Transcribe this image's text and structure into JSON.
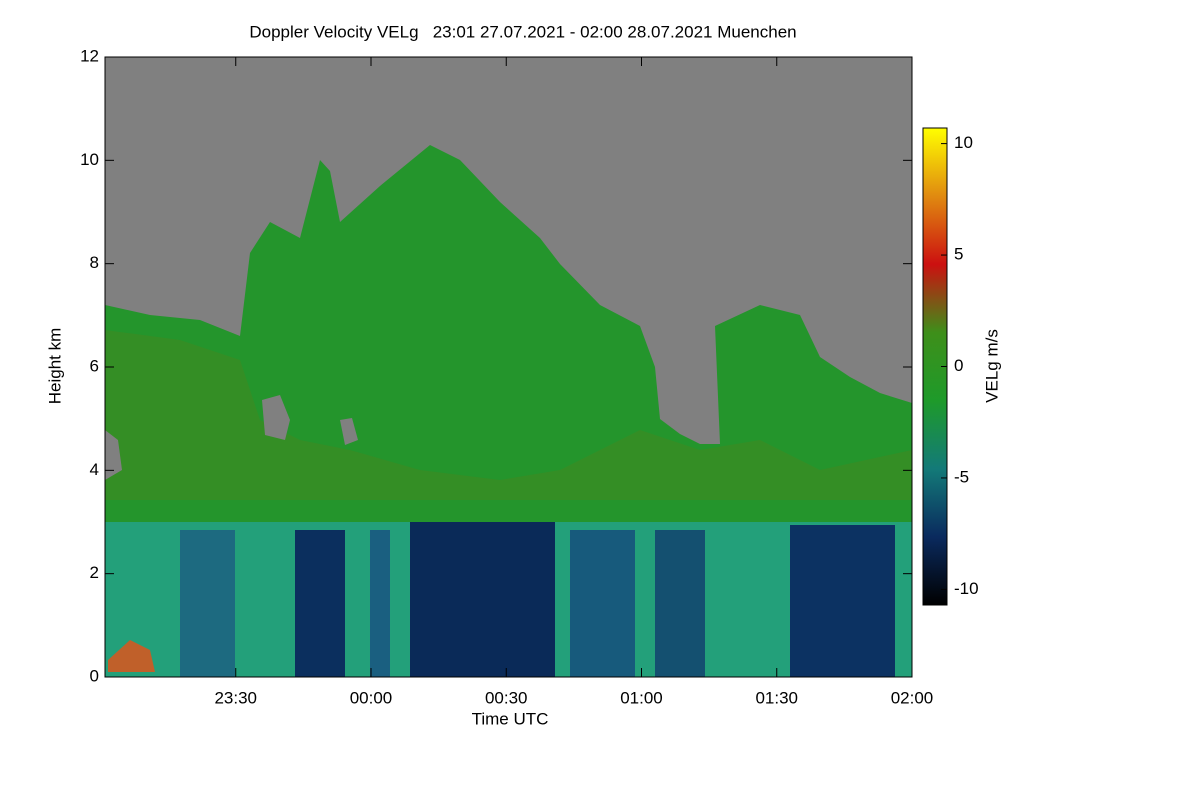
{
  "chart_data": {
    "type": "heatmap",
    "title": "Doppler Velocity VELg   23:01 27.07.2021 - 02:00 28.07.2021 Muenchen",
    "x_label": "Time UTC",
    "y_label": "Height km",
    "colorbar_label": "VELg m/s",
    "xlim": [
      -59,
      120
    ],
    "xticks": [
      {
        "value": -30,
        "label": "23:30"
      },
      {
        "value": 0,
        "label": "00:00"
      },
      {
        "value": 30,
        "label": "00:30"
      },
      {
        "value": 60,
        "label": "01:00"
      },
      {
        "value": 90,
        "label": "01:30"
      },
      {
        "value": 120,
        "label": "02:00"
      }
    ],
    "ylim": [
      0,
      12
    ],
    "yticks": [
      0,
      2,
      4,
      6,
      8,
      10,
      12
    ],
    "clim": [
      -10.7,
      10.7
    ],
    "cticks": [
      -10,
      -5,
      0,
      5,
      10
    ],
    "colormap": [
      "#000000",
      "#0a2a5e",
      "#137a78",
      "#1e9a2a",
      "#3e8f1a",
      "#cc1010",
      "#e08a10",
      "#ffff00"
    ]
  }
}
